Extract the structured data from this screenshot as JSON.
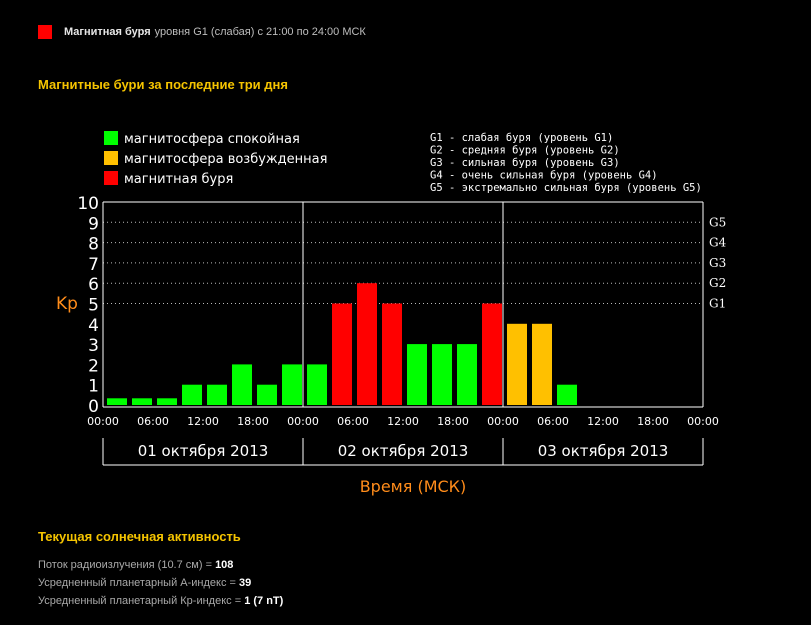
{
  "header": {
    "alert_color": "#ff0000",
    "alert_bold": "Магнитная буря",
    "alert_text": "уровня  G1 (слабая) с 21:00 по 24:00 МСК"
  },
  "chart_section_title": "Магнитные бури за последние три дня",
  "colors": {
    "quiet": "#00ff00",
    "excited": "#ffc000",
    "storm": "#ff0000",
    "axis_text": "#ffffff",
    "axis_title": "#ff8c1a",
    "heading": "#f5c400"
  },
  "chart_data": {
    "type": "bar",
    "ylabel": "Kp",
    "xlabel": "Время (МСК)",
    "ylim": [
      0,
      10
    ],
    "yticks": [
      "0",
      "1",
      "2",
      "3",
      "4",
      "5",
      "6",
      "7",
      "8",
      "9",
      "10"
    ],
    "grid": "horizontal dotted from 5 to 9",
    "g_levels": [
      {
        "label": "G1",
        "kp": 5
      },
      {
        "label": "G2",
        "kp": 6
      },
      {
        "label": "G3",
        "kp": 7
      },
      {
        "label": "G4",
        "kp": 8
      },
      {
        "label": "G5",
        "kp": 9
      }
    ],
    "time_ticks": [
      "00:00",
      "06:00",
      "12:00",
      "18:00",
      "00:00",
      "06:00",
      "12:00",
      "18:00",
      "00:00",
      "06:00",
      "12:00",
      "18:00",
      "00:00"
    ],
    "days": [
      "01 октября 2013",
      "02 октября 2013",
      "03 октября 2013"
    ],
    "legend": [
      {
        "label": "магнитосфера спокойная",
        "color": "#00ff00"
      },
      {
        "label": "магнитосфера возбужденная",
        "color": "#ffc000"
      },
      {
        "label": "магнитная буря",
        "color": "#ff0000"
      }
    ],
    "g_legend": [
      "G1 - слабая буря (уровень G1)",
      "G2 - средняя буря (уровень G2)",
      "G3 - сильная буря (уровень G3)",
      "G4 - очень сильная буря (уровень G4)",
      "G5 - экстремально сильная буря (уровень G5)"
    ],
    "values": [
      0.33,
      0.33,
      0.33,
      1,
      1,
      2,
      1,
      2,
      2,
      5,
      6,
      5,
      3,
      3,
      3,
      5,
      4,
      4,
      1,
      0,
      0,
      0,
      0,
      0
    ],
    "colors": [
      "#00ff00",
      "#00ff00",
      "#00ff00",
      "#00ff00",
      "#00ff00",
      "#00ff00",
      "#00ff00",
      "#00ff00",
      "#00ff00",
      "#ff0000",
      "#ff0000",
      "#ff0000",
      "#00ff00",
      "#00ff00",
      "#00ff00",
      "#ff0000",
      "#ffc000",
      "#ffc000",
      "#00ff00",
      "#00ff00",
      "#00ff00",
      "#00ff00",
      "#00ff00",
      "#00ff00"
    ]
  },
  "solar": {
    "heading": "Текущая солнечная активность",
    "radio_label": "Поток радиоизлучения (10.7 см) = ",
    "radio_value": "108",
    "a_label": "Усредненный планетарный А-индекс = ",
    "a_value": "39",
    "kp_label": "Усредненный планетарный Кр-индекс = ",
    "kp_value": "1 (7 nT)"
  }
}
